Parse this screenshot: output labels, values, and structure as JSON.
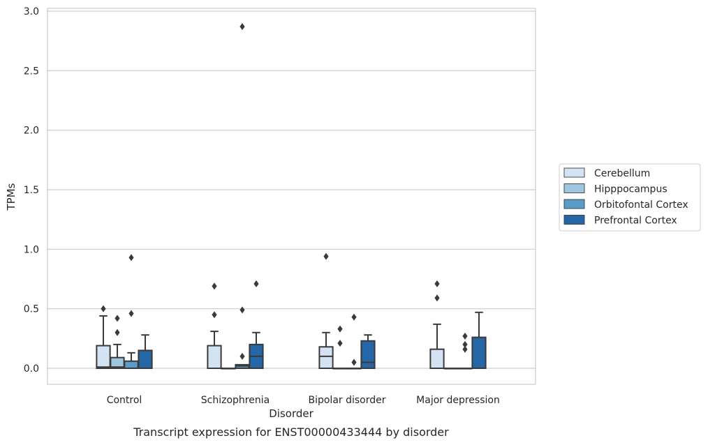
{
  "chart_data": {
    "type": "box",
    "title": "",
    "caption": "Transcript expression for ENST00000433444 by disorder",
    "xlabel": "Disorder",
    "ylabel": "TPMs",
    "ylim": [
      -0.14,
      3.02
    ],
    "yticks": [
      0.0,
      0.5,
      1.0,
      1.5,
      2.0,
      2.5,
      3.0
    ],
    "ytick_labels": [
      "0.0",
      "0.5",
      "1.0",
      "1.5",
      "2.0",
      "2.5",
      "3.0"
    ],
    "grid": "horizontal",
    "legend_position": "right",
    "categories": [
      "Control",
      "Schizophrenia",
      "Bipolar disorder",
      "Major depression"
    ],
    "series": [
      {
        "name": "Cerebellum",
        "color": "#d4e3f3",
        "boxes": [
          {
            "q1": 0.0,
            "median": 0.01,
            "q3": 0.19,
            "whisker_low": 0.0,
            "whisker_high": 0.44,
            "outliers": [
              0.5
            ]
          },
          {
            "q1": 0.0,
            "median": 0.0,
            "q3": 0.19,
            "whisker_low": 0.0,
            "whisker_high": 0.31,
            "outliers": [
              0.45,
              0.69
            ]
          },
          {
            "q1": 0.0,
            "median": 0.1,
            "q3": 0.18,
            "whisker_low": 0.0,
            "whisker_high": 0.3,
            "outliers": [
              0.94
            ]
          },
          {
            "q1": 0.0,
            "median": 0.0,
            "q3": 0.16,
            "whisker_low": 0.0,
            "whisker_high": 0.37,
            "outliers": [
              0.59,
              0.71
            ]
          }
        ]
      },
      {
        "name": "Hipppocampus",
        "color": "#9fc6df",
        "boxes": [
          {
            "q1": 0.0,
            "median": 0.01,
            "q3": 0.09,
            "whisker_low": 0.0,
            "whisker_high": 0.2,
            "outliers": [
              0.3,
              0.42
            ]
          },
          {
            "q1": 0.0,
            "median": 0.0,
            "q3": 0.0,
            "whisker_low": 0.0,
            "whisker_high": 0.0,
            "outliers": []
          },
          {
            "q1": 0.0,
            "median": 0.0,
            "q3": 0.0,
            "whisker_low": 0.0,
            "whisker_high": 0.0,
            "outliers": [
              0.21,
              0.33
            ]
          },
          {
            "q1": 0.0,
            "median": 0.0,
            "q3": 0.0,
            "whisker_low": 0.0,
            "whisker_high": 0.0,
            "outliers": []
          }
        ]
      },
      {
        "name": "Orbitofontal Cortex",
        "color": "#5a9cc9",
        "boxes": [
          {
            "q1": 0.0,
            "median": 0.0,
            "q3": 0.06,
            "whisker_low": 0.0,
            "whisker_high": 0.13,
            "outliers": [
              0.46,
              0.93
            ]
          },
          {
            "q1": 0.0,
            "median": 0.02,
            "q3": 0.03,
            "whisker_low": 0.0,
            "whisker_high": 0.03,
            "outliers": [
              0.1,
              0.49,
              2.87
            ]
          },
          {
            "q1": 0.0,
            "median": 0.0,
            "q3": 0.0,
            "whisker_low": 0.0,
            "whisker_high": 0.0,
            "outliers": [
              0.05,
              0.43
            ]
          },
          {
            "q1": 0.0,
            "median": 0.0,
            "q3": 0.0,
            "whisker_low": 0.0,
            "whisker_high": 0.0,
            "outliers": [
              0.16,
              0.2,
              0.27
            ]
          }
        ]
      },
      {
        "name": "Prefrontal Cortex",
        "color": "#2466a6",
        "boxes": [
          {
            "q1": 0.0,
            "median": 0.0,
            "q3": 0.15,
            "whisker_low": 0.0,
            "whisker_high": 0.28,
            "outliers": []
          },
          {
            "q1": 0.0,
            "median": 0.1,
            "q3": 0.2,
            "whisker_low": 0.0,
            "whisker_high": 0.3,
            "outliers": [
              0.71
            ]
          },
          {
            "q1": 0.0,
            "median": 0.05,
            "q3": 0.23,
            "whisker_low": 0.0,
            "whisker_high": 0.28,
            "outliers": []
          },
          {
            "q1": 0.0,
            "median": 0.0,
            "q3": 0.26,
            "whisker_low": 0.0,
            "whisker_high": 0.47,
            "outliers": []
          }
        ]
      }
    ]
  }
}
